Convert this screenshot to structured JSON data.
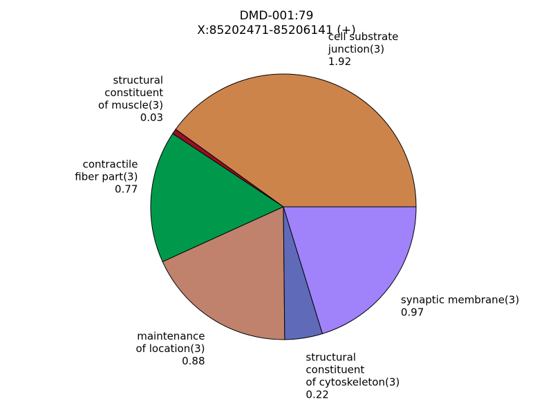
{
  "chart_data": {
    "type": "pie",
    "title_lines": [
      "DMD-001:79",
      "X:85202471-85206141 (+)"
    ],
    "start_angle_deg": 0,
    "direction": "counterclockwise",
    "slices": [
      {
        "label_lines": [
          "cell substrate",
          "junction(3)",
          "1.92"
        ],
        "value": 1.92,
        "color": "#CD844B"
      },
      {
        "label_lines": [
          "structural",
          "constituent",
          "of muscle(3)",
          "0.03"
        ],
        "value": 0.03,
        "color": "#990F26"
      },
      {
        "label_lines": [
          "contractile",
          "fiber part(3)",
          "0.77"
        ],
        "value": 0.77,
        "color": "#00994C"
      },
      {
        "label_lines": [
          "maintenance",
          "of location(3)",
          "0.88"
        ],
        "value": 0.88,
        "color": "#C0826C"
      },
      {
        "label_lines": [
          "structural",
          "constituent",
          "of cytoskeleton(3)",
          "0.22"
        ],
        "value": 0.22,
        "color": "#5F6BB9"
      },
      {
        "label_lines": [
          "synaptic membrane(3)",
          "0.97"
        ],
        "value": 0.97,
        "color": "#A082FA"
      }
    ]
  }
}
